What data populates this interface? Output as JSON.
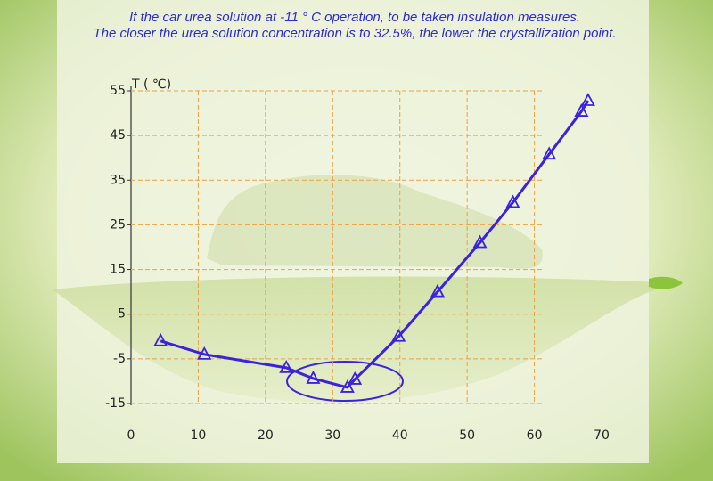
{
  "chart_data": {
    "type": "line",
    "title": "If the car urea solution at -11 ° C operation, to be taken insulation measures.",
    "subtitle": "The closer the urea solution concentration is to 32.5%, the lower the crystallization point.",
    "y_label": "T ( ℃)",
    "x": [
      4.4,
      10.9,
      23.1,
      27.1,
      32.2,
      33.3,
      39.8,
      45.6,
      51.9,
      56.8,
      62.2,
      67,
      68
    ],
    "series": [
      {
        "color": "#3b22dd",
        "values": [
          -1,
          -4,
          -7,
          -9.4,
          -11.4,
          -9.6,
          0,
          10,
          21,
          30,
          40.8,
          50.4,
          52.8
        ]
      }
    ],
    "xlim": [
      0,
      70
    ],
    "xticks": [
      0,
      10,
      20,
      30,
      40,
      50,
      60,
      70
    ],
    "ylim": [
      -15,
      55
    ],
    "yticks": [
      -15,
      -5,
      5,
      15,
      25,
      35,
      45,
      55
    ],
    "grid": true
  }
}
